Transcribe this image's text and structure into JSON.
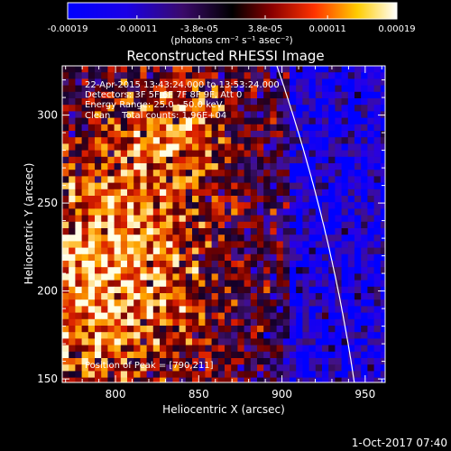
{
  "colorbar": {
    "tick_labels": [
      "-0.00019",
      "-0.00011",
      "-3.8e-05",
      "3.8e-05",
      "0.00011",
      "0.00019"
    ],
    "tick_values": [
      -0.00019,
      -0.00011,
      -3.8e-05,
      3.8e-05,
      0.00011,
      0.00019
    ],
    "unit_label": "(photons cm⁻² s⁻¹ asec⁻²)",
    "range": [
      -0.00019,
      0.00019
    ]
  },
  "chart_data": {
    "type": "heatmap",
    "title": "Reconstructed RHESSI Image",
    "xlabel": "Heliocentric X (arcsec)",
    "ylabel": "Heliocentric Y (arcsec)",
    "xlim": [
      768,
      962
    ],
    "ylim": [
      148,
      328
    ],
    "x_ticks": [
      800,
      850,
      900,
      950
    ],
    "y_ticks": [
      150,
      200,
      250,
      300
    ],
    "x_tick_labels": [
      "800",
      "850",
      "900",
      "950"
    ],
    "y_tick_labels": [
      "150",
      "200",
      "250",
      "300"
    ],
    "annotations": [
      "22-Apr-2015 13:43:24.000 to 13:53:24.000",
      "Detectors: 3F 5F 6F 7F 8F 9F, Att 0",
      "Energy Range: 25.0 - 50.0 keV",
      "Clean    Total counts: 1.96E+04"
    ],
    "peak_label": "Position of Peak = [790,211]",
    "peak": [
      790,
      211
    ],
    "color_table": [
      "#0000ff",
      "#3b00ff",
      "#000000",
      "#ff0000",
      "#ffff00",
      "#ffffff"
    ],
    "limb_color": "#ffffff"
  },
  "footer": {
    "timestamp": "1-Oct-2017 07:40"
  }
}
